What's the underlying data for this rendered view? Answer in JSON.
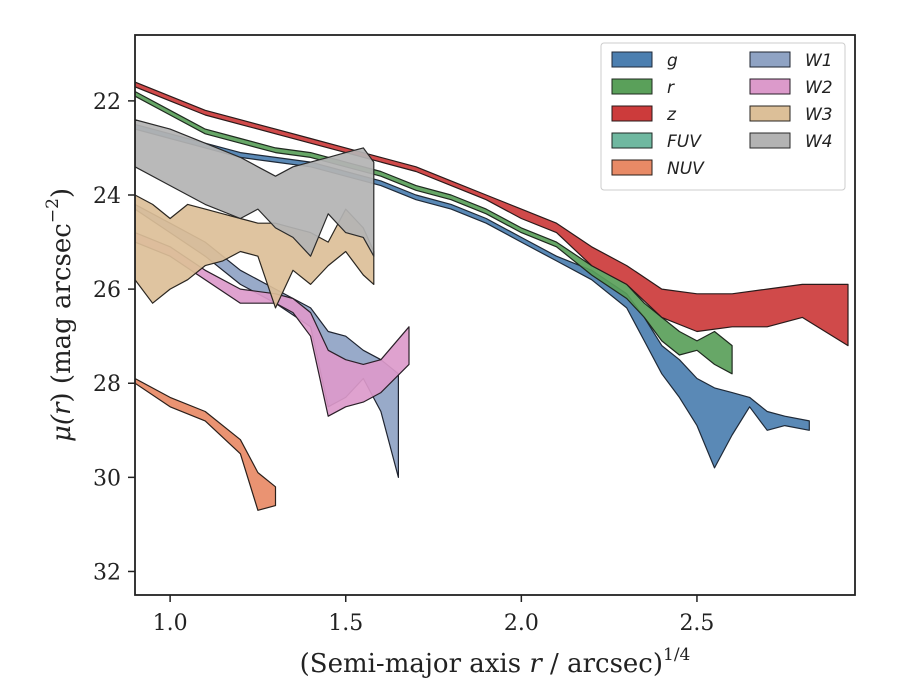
{
  "chart_data": {
    "type": "area",
    "xlabel_parts": {
      "pre": "(Semi-major axis ",
      "var": "r",
      "post": " / arcsec)",
      "sup": "1/4"
    },
    "ylabel_parts": {
      "pre": "μ(",
      "var": "r",
      "mid": ") (mag arcsec",
      "sup": "−2",
      "post": ")"
    },
    "xlim": [
      0.9,
      2.95
    ],
    "ylim": [
      32.5,
      20.6
    ],
    "y_inverted": true,
    "xticks": [
      1.0,
      1.5,
      2.0,
      2.5
    ],
    "xtick_labels": [
      "1.0",
      "1.5",
      "2.0",
      "2.5"
    ],
    "yticks": [
      22,
      24,
      26,
      28,
      30,
      32
    ],
    "ytick_labels": [
      "22",
      "24",
      "26",
      "28",
      "30",
      "32"
    ],
    "grid": false,
    "legend_placement": "top-right",
    "series": [
      {
        "name": "g",
        "color": "#4c7fb0",
        "edge": "#1f2a38",
        "x": [
          0.9,
          1.0,
          1.1,
          1.2,
          1.3,
          1.4,
          1.5,
          1.6,
          1.7,
          1.8,
          1.9,
          2.0,
          2.1,
          2.2,
          2.3,
          2.35,
          2.4,
          2.45,
          2.5,
          2.55,
          2.6,
          2.65,
          2.7,
          2.75,
          2.82
        ],
        "lo": [
          22.5,
          22.7,
          22.9,
          23.1,
          23.2,
          23.3,
          23.5,
          23.7,
          24.0,
          24.2,
          24.5,
          24.9,
          25.3,
          25.6,
          26.1,
          26.6,
          27.2,
          27.5,
          27.9,
          28.1,
          28.2,
          28.3,
          28.6,
          28.7,
          28.8
        ],
        "hi": [
          22.6,
          22.8,
          23.0,
          23.2,
          23.3,
          23.4,
          23.6,
          23.8,
          24.1,
          24.3,
          24.6,
          25.0,
          25.4,
          25.8,
          26.4,
          27.1,
          27.8,
          28.3,
          28.9,
          29.8,
          29.1,
          28.5,
          29.0,
          28.9,
          29.0
        ]
      },
      {
        "name": "r",
        "color": "#5aa05a",
        "edge": "#1f2a1f",
        "x": [
          0.9,
          1.0,
          1.1,
          1.2,
          1.3,
          1.4,
          1.5,
          1.6,
          1.7,
          1.8,
          1.9,
          2.0,
          2.1,
          2.2,
          2.3,
          2.35,
          2.4,
          2.45,
          2.5,
          2.55,
          2.6
        ],
        "lo": [
          21.8,
          22.2,
          22.6,
          22.8,
          23.0,
          23.1,
          23.3,
          23.5,
          23.8,
          24.0,
          24.3,
          24.7,
          25.0,
          25.5,
          25.9,
          26.3,
          26.6,
          26.9,
          27.1,
          26.9,
          27.2
        ],
        "hi": [
          21.9,
          22.3,
          22.7,
          22.9,
          23.1,
          23.2,
          23.4,
          23.6,
          23.9,
          24.1,
          24.4,
          24.8,
          25.1,
          25.7,
          26.2,
          26.6,
          27.1,
          27.4,
          27.3,
          27.6,
          27.8
        ]
      },
      {
        "name": "z",
        "color": "#cc3b3b",
        "edge": "#2a1a1a",
        "x": [
          0.9,
          1.0,
          1.1,
          1.2,
          1.3,
          1.4,
          1.5,
          1.6,
          1.7,
          1.8,
          1.9,
          2.0,
          2.1,
          2.2,
          2.3,
          2.4,
          2.5,
          2.6,
          2.7,
          2.8,
          2.93
        ],
        "lo": [
          21.6,
          21.9,
          22.2,
          22.4,
          22.6,
          22.8,
          23.0,
          23.2,
          23.4,
          23.7,
          24.0,
          24.3,
          24.6,
          25.1,
          25.5,
          26.0,
          26.1,
          26.1,
          26.0,
          25.9,
          25.9
        ],
        "hi": [
          21.7,
          22.0,
          22.3,
          22.5,
          22.7,
          22.9,
          23.1,
          23.3,
          23.5,
          23.8,
          24.1,
          24.5,
          24.8,
          25.5,
          25.9,
          26.6,
          26.9,
          26.8,
          26.8,
          26.6,
          27.2
        ]
      },
      {
        "name": "FUV",
        "color": "#6fb8a0",
        "edge": "#1f2a26",
        "x": [],
        "lo": [],
        "hi": []
      },
      {
        "name": "NUV",
        "color": "#e88a66",
        "edge": "#2a1f1a",
        "x": [
          0.9,
          1.0,
          1.1,
          1.2,
          1.25,
          1.3
        ],
        "lo": [
          27.9,
          28.3,
          28.6,
          29.2,
          29.9,
          30.2
        ],
        "hi": [
          28.0,
          28.5,
          28.8,
          29.5,
          30.7,
          30.6
        ]
      },
      {
        "name": "W1",
        "color": "#8fa3c4",
        "edge": "#1f2430",
        "x": [
          0.9,
          1.0,
          1.1,
          1.2,
          1.3,
          1.4,
          1.45,
          1.5,
          1.55,
          1.6,
          1.65
        ],
        "lo": [
          24.2,
          24.6,
          25.0,
          25.6,
          26.0,
          26.4,
          26.9,
          27.0,
          27.3,
          27.5,
          27.8
        ],
        "hi": [
          24.3,
          24.8,
          25.3,
          25.9,
          26.3,
          26.8,
          28.5,
          28.3,
          27.9,
          28.6,
          30.0
        ]
      },
      {
        "name": "W2",
        "color": "#dc9acb",
        "edge": "#2a1f28",
        "x": [
          0.9,
          1.0,
          1.1,
          1.2,
          1.3,
          1.35,
          1.4,
          1.45,
          1.5,
          1.55,
          1.6,
          1.68
        ],
        "lo": [
          24.8,
          25.1,
          25.6,
          26.0,
          26.1,
          26.2,
          26.5,
          27.3,
          27.5,
          27.6,
          27.5,
          26.8
        ],
        "hi": [
          25.0,
          25.3,
          25.8,
          26.3,
          26.3,
          26.5,
          27.0,
          28.7,
          28.5,
          28.4,
          28.2,
          27.6
        ]
      },
      {
        "name": "W3",
        "color": "#dcbf98",
        "edge": "#2a2620",
        "x": [
          0.9,
          0.95,
          1.0,
          1.05,
          1.1,
          1.15,
          1.2,
          1.25,
          1.3,
          1.35,
          1.4,
          1.45,
          1.5,
          1.55,
          1.58
        ],
        "lo": [
          24.0,
          24.2,
          24.5,
          24.2,
          24.3,
          24.4,
          24.5,
          24.6,
          24.6,
          24.7,
          24.8,
          25.0,
          24.3,
          24.7,
          25.2
        ],
        "hi": [
          25.8,
          26.3,
          26.0,
          25.8,
          25.5,
          25.4,
          25.2,
          25.3,
          26.4,
          25.6,
          25.9,
          25.5,
          25.2,
          25.7,
          25.9
        ]
      },
      {
        "name": "W4",
        "color": "#b3b3b3",
        "edge": "#2a2a2a",
        "x": [
          0.9,
          1.0,
          1.1,
          1.2,
          1.25,
          1.3,
          1.35,
          1.4,
          1.45,
          1.5,
          1.55,
          1.58
        ],
        "lo": [
          22.4,
          22.6,
          22.9,
          23.2,
          23.4,
          23.6,
          23.4,
          23.3,
          23.2,
          23.1,
          23.0,
          23.3
        ],
        "hi": [
          23.4,
          23.8,
          24.2,
          24.5,
          24.3,
          24.7,
          24.9,
          25.3,
          24.4,
          24.8,
          24.9,
          25.3
        ]
      }
    ]
  }
}
